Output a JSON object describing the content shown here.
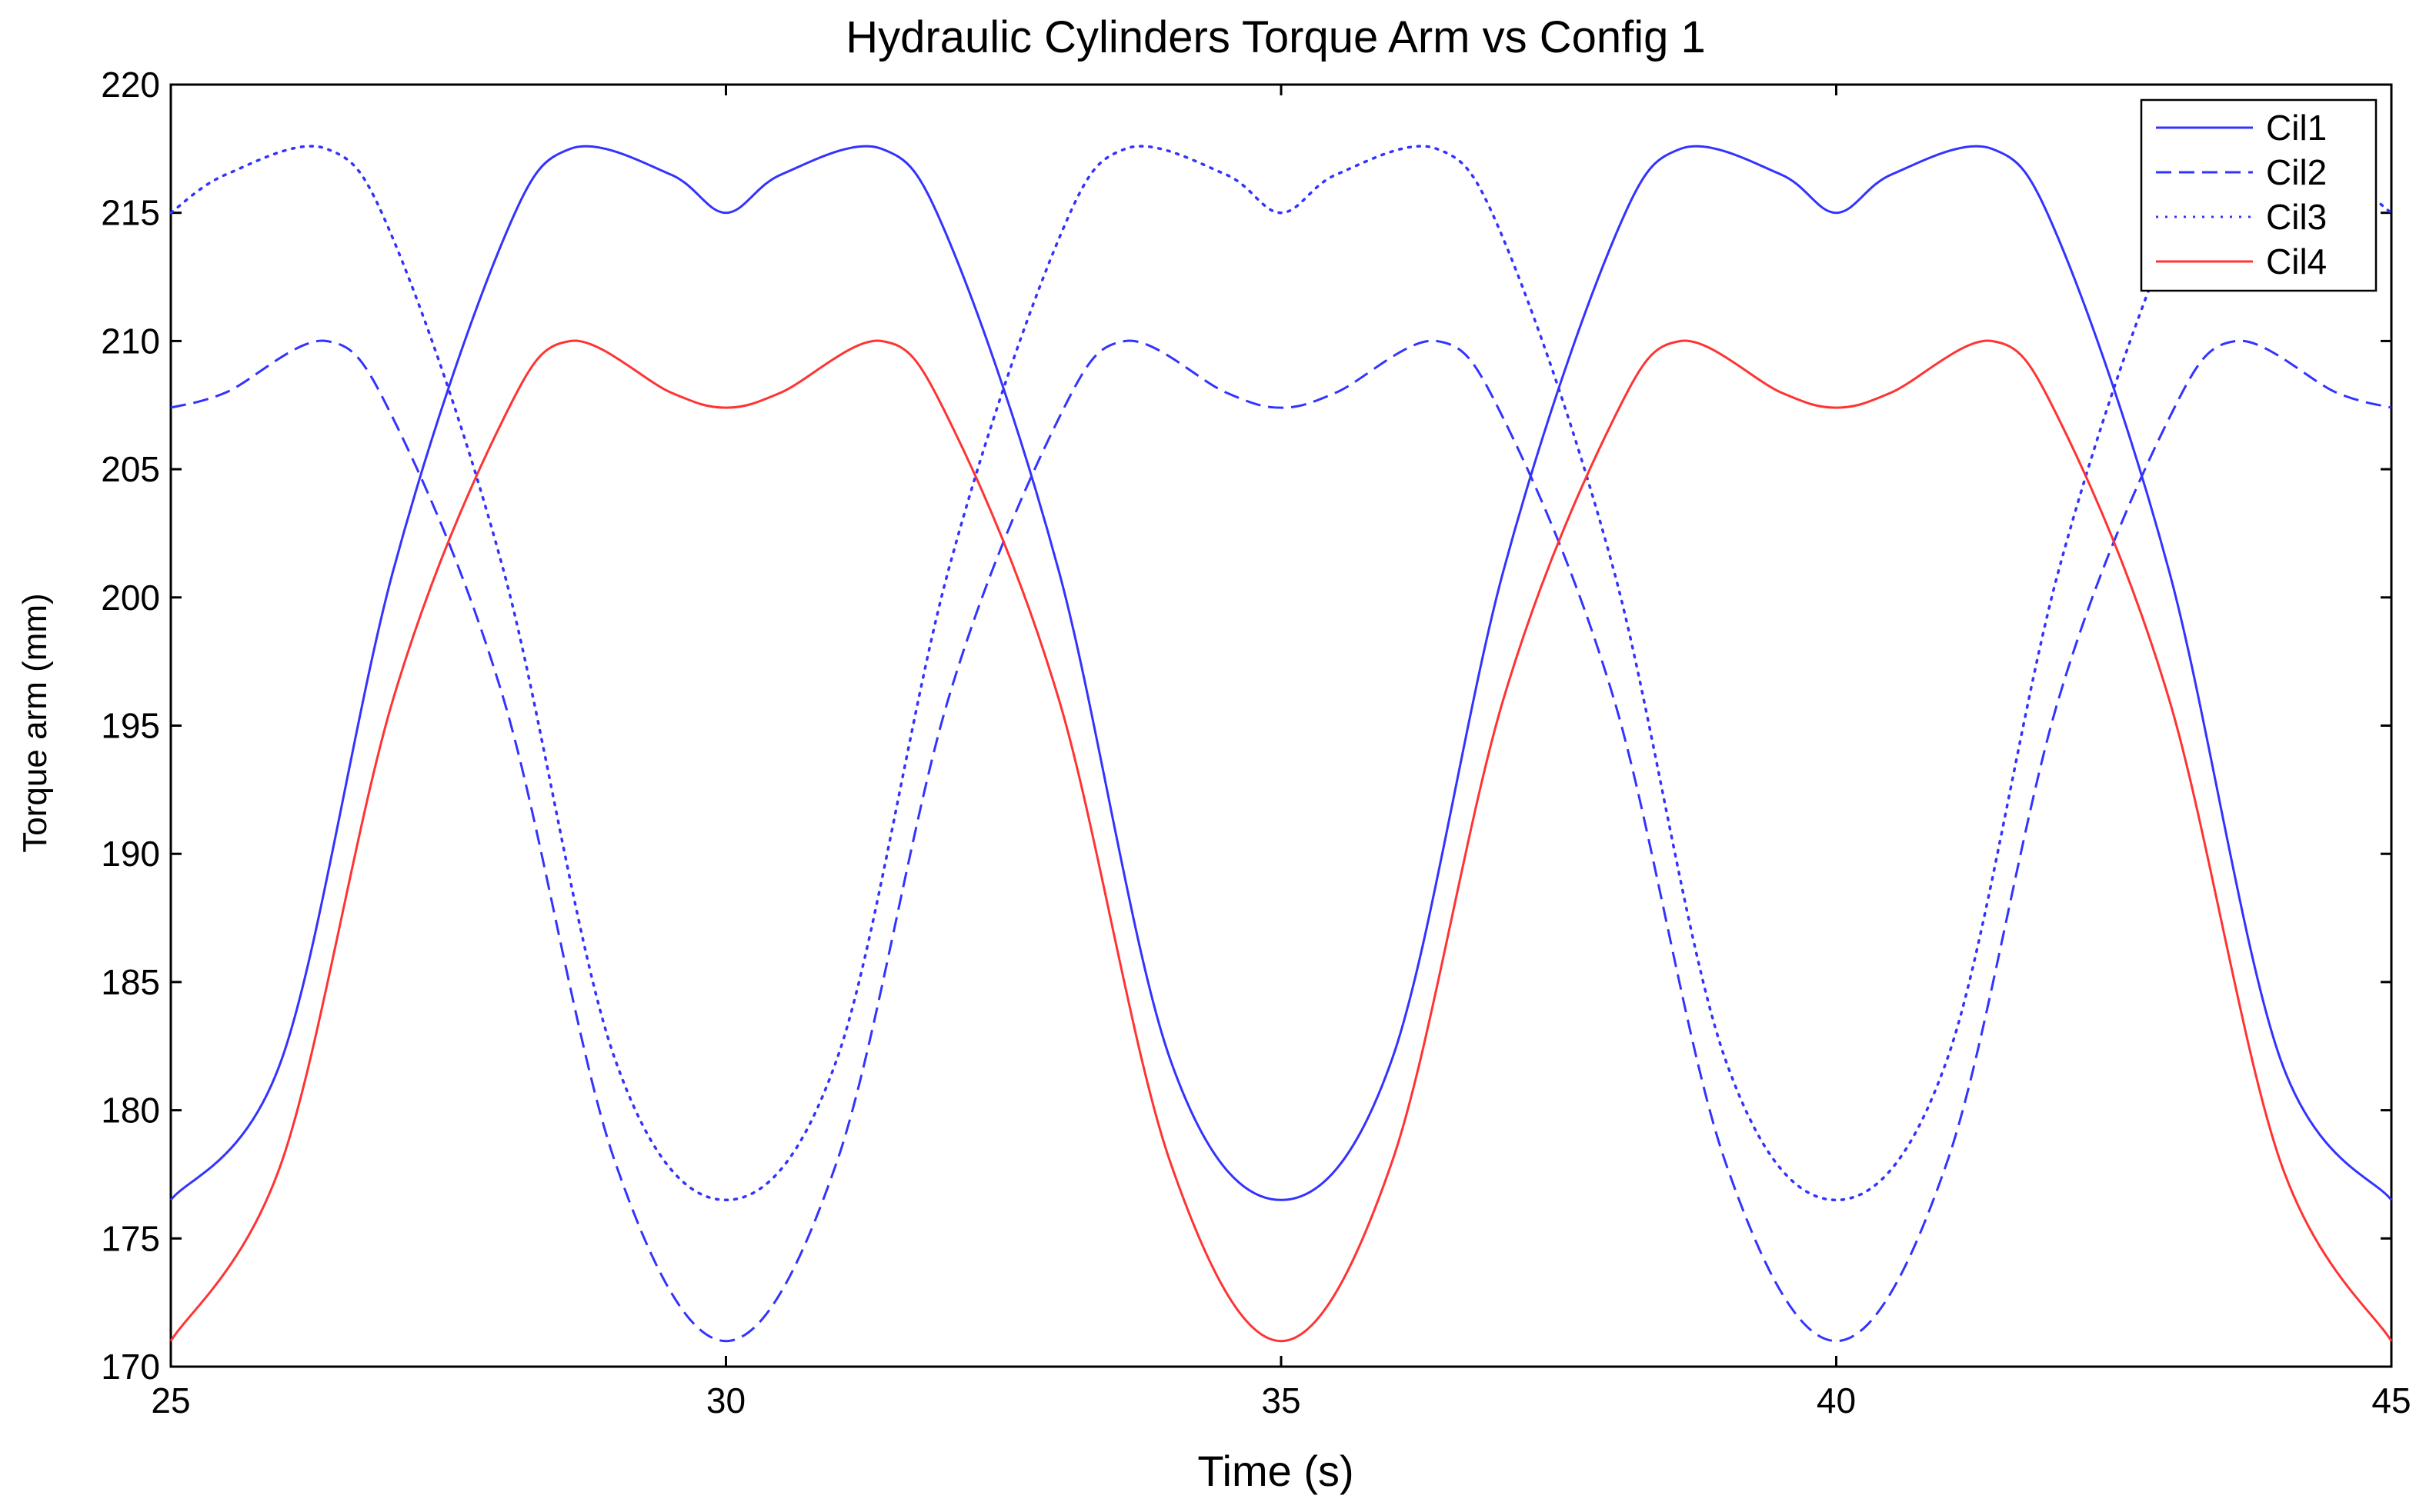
{
  "chart_data": {
    "type": "line",
    "title": "Hydraulic Cylinders Torque Arm vs Config 1",
    "xlabel": "Time (s)",
    "ylabel": "Torque arm (mm)",
    "xlim": [
      25,
      45
    ],
    "ylim": [
      170,
      220
    ],
    "xticks": [
      25,
      30,
      35,
      40,
      45
    ],
    "yticks": [
      170,
      175,
      180,
      185,
      190,
      195,
      200,
      205,
      210,
      215,
      220
    ],
    "grid": false,
    "legend_position": "top-right",
    "period": 10,
    "series": [
      {
        "name": "Cil1",
        "color": "#3333ff",
        "style": "solid",
        "points": [
          [
            25,
            176.5
          ],
          [
            26,
            182
          ],
          [
            27,
            201
          ],
          [
            28,
            214
          ],
          [
            28.6,
            217.5
          ],
          [
            29.5,
            216.5
          ],
          [
            30,
            215
          ],
          [
            30.5,
            216.5
          ],
          [
            31.4,
            217.5
          ],
          [
            32,
            214
          ],
          [
            33,
            201
          ],
          [
            34,
            182
          ],
          [
            35,
            176.5
          ],
          [
            36,
            182
          ],
          [
            37,
            201
          ],
          [
            38,
            214
          ],
          [
            38.6,
            217.5
          ],
          [
            39.5,
            216.5
          ],
          [
            40,
            215
          ],
          [
            40.5,
            216.5
          ],
          [
            41.4,
            217.5
          ],
          [
            42,
            214
          ],
          [
            43,
            201
          ],
          [
            44,
            182
          ],
          [
            45,
            176.5
          ]
        ]
      },
      {
        "name": "Cil2",
        "color": "#3333ff",
        "style": "dashed",
        "points": [
          [
            25,
            207.4
          ],
          [
            25.5,
            208
          ],
          [
            26.4,
            210
          ],
          [
            27,
            207
          ],
          [
            28,
            196
          ],
          [
            29,
            178
          ],
          [
            30,
            171
          ],
          [
            31,
            178
          ],
          [
            32,
            196
          ],
          [
            33,
            207
          ],
          [
            33.6,
            210
          ],
          [
            34.5,
            208
          ],
          [
            35,
            207.4
          ],
          [
            35.5,
            208
          ],
          [
            36.4,
            210
          ],
          [
            37,
            207
          ],
          [
            38,
            196
          ],
          [
            39,
            178
          ],
          [
            40,
            171
          ],
          [
            41,
            178
          ],
          [
            42,
            196
          ],
          [
            43,
            207
          ],
          [
            43.6,
            210
          ],
          [
            44.5,
            208
          ],
          [
            45,
            207.4
          ]
        ]
      },
      {
        "name": "Cil3",
        "color": "#3333ff",
        "style": "dotted",
        "points": [
          [
            25,
            215
          ],
          [
            25.5,
            216.5
          ],
          [
            26.4,
            217.5
          ],
          [
            27,
            214
          ],
          [
            28,
            201
          ],
          [
            29,
            182
          ],
          [
            30,
            176.5
          ],
          [
            31,
            182
          ],
          [
            32,
            201
          ],
          [
            33,
            214
          ],
          [
            33.6,
            217.5
          ],
          [
            34.5,
            216.5
          ],
          [
            35,
            215
          ],
          [
            35.5,
            216.5
          ],
          [
            36.4,
            217.5
          ],
          [
            37,
            214
          ],
          [
            38,
            201
          ],
          [
            39,
            182
          ],
          [
            40,
            176.5
          ],
          [
            41,
            182
          ],
          [
            42,
            201
          ],
          [
            43,
            214
          ],
          [
            43.6,
            217.5
          ],
          [
            44.5,
            216.5
          ],
          [
            45,
            215
          ]
        ]
      },
      {
        "name": "Cil4",
        "color": "#ff3333",
        "style": "solid",
        "points": [
          [
            25,
            171
          ],
          [
            26,
            178
          ],
          [
            27,
            196
          ],
          [
            28,
            207
          ],
          [
            28.6,
            210
          ],
          [
            29.5,
            208
          ],
          [
            30,
            207.4
          ],
          [
            30.5,
            208
          ],
          [
            31.4,
            210
          ],
          [
            32,
            207
          ],
          [
            33,
            196
          ],
          [
            34,
            178
          ],
          [
            35,
            171
          ],
          [
            36,
            178
          ],
          [
            37,
            196
          ],
          [
            38,
            207
          ],
          [
            38.6,
            210
          ],
          [
            39.5,
            208
          ],
          [
            40,
            207.4
          ],
          [
            40.5,
            208
          ],
          [
            41.4,
            210
          ],
          [
            42,
            207
          ],
          [
            43,
            196
          ],
          [
            44,
            178
          ],
          [
            45,
            171
          ]
        ]
      }
    ]
  }
}
